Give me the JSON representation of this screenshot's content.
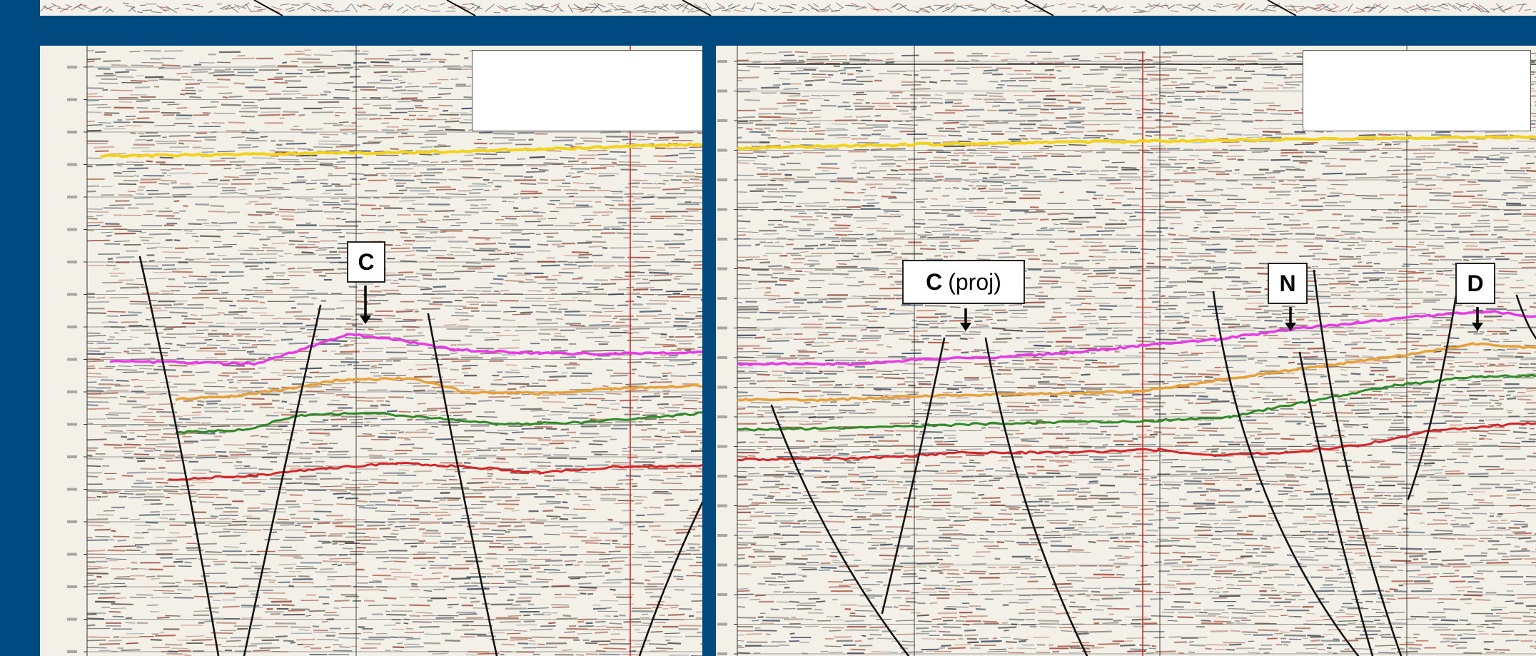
{
  "left_panel": {
    "labels": [
      {
        "id": "C",
        "text": "C",
        "suffix": ""
      }
    ]
  },
  "right_panel": {
    "labels": [
      {
        "id": "C-proj",
        "text": "C",
        "suffix": "(proj)"
      },
      {
        "id": "N",
        "text": "N",
        "suffix": ""
      },
      {
        "id": "D",
        "text": "D",
        "suffix": ""
      }
    ]
  },
  "colors": {
    "background": "#004a80",
    "yellow_horizon": "#f2d21a",
    "magenta_horizon": "#e83be6",
    "orange_horizon": "#e8a13a",
    "green_horizon": "#2f8a2a",
    "red_horizon": "#d8252a",
    "fault_line": "#111111",
    "marker_line": "#d42a2a"
  }
}
